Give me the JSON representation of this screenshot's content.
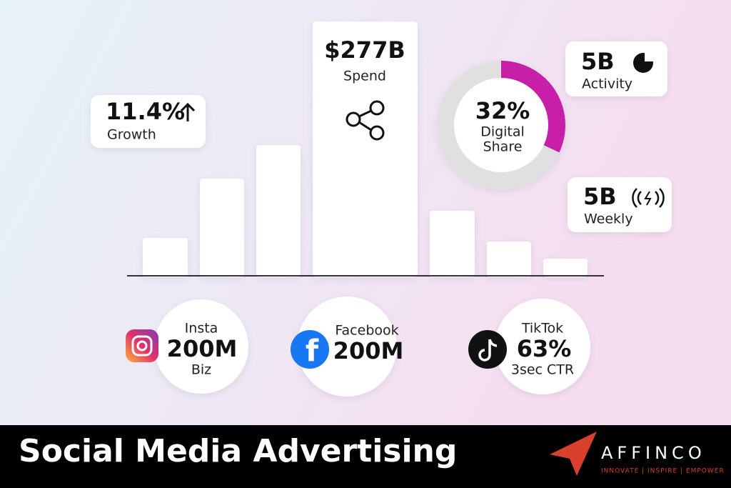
{
  "stats": {
    "growth": {
      "value": "11.4%",
      "label": "Growth"
    },
    "spend": {
      "value": "$277B",
      "label": "Spend"
    },
    "activity": {
      "value": "5B",
      "label": "Activity"
    },
    "weekly": {
      "value": "5B",
      "label": "Weekly"
    },
    "share": {
      "value": 32,
      "value_label": "32%",
      "label_lines": [
        "Digital",
        "Share"
      ]
    }
  },
  "platforms": [
    {
      "name": "Insta",
      "value": "200M",
      "note": "Biz"
    },
    {
      "name": "Facebook",
      "value": "200M"
    },
    {
      "name": "TikTok",
      "value": "63%",
      "note": "3sec CTR"
    }
  ],
  "footer": {
    "title": "Social Media Advertising",
    "brand": "AFFINCO",
    "tagline": "INNOVATE | INSPIRE | EMPOWER"
  }
}
